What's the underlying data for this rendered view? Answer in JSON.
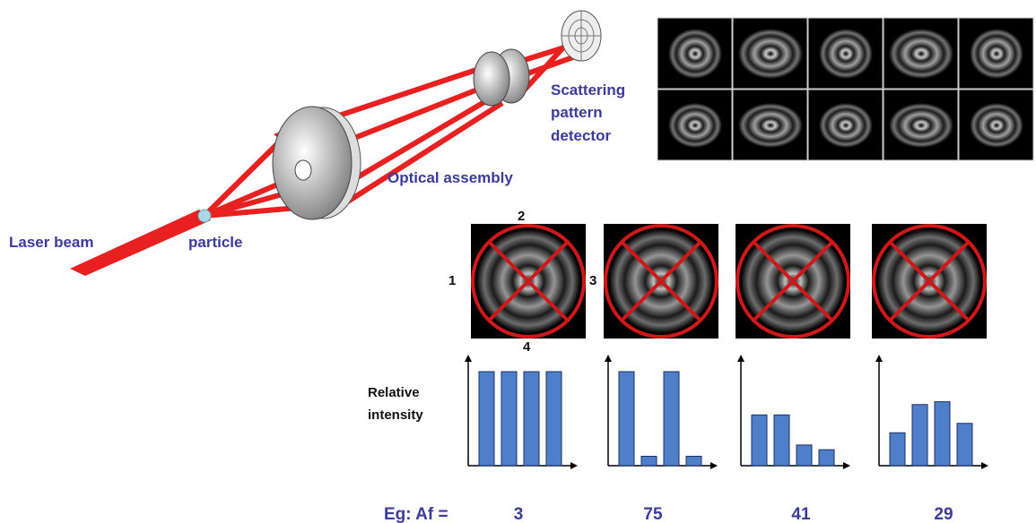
{
  "labels": {
    "laser_beam": "Laser beam",
    "particle": "particle",
    "optical_assembly": "Optical assembly",
    "detector": [
      "Scattering",
      "pattern",
      "detector"
    ],
    "quadrants": [
      "1",
      "2",
      "3",
      "4"
    ],
    "y_axis": [
      "Relative",
      "intensity"
    ],
    "example": "Eg:  Af ="
  },
  "charts": [
    {
      "type": "bar",
      "af": "3",
      "values": [
        100,
        100,
        100,
        100
      ],
      "ylim": [
        0,
        100
      ],
      "color": "#4f7fc8"
    },
    {
      "type": "bar",
      "af": "75",
      "values": [
        100,
        10,
        100,
        10
      ],
      "ylim": [
        0,
        100
      ],
      "color": "#4f7fc8"
    },
    {
      "type": "bar",
      "af": "41",
      "values": [
        54,
        54,
        22,
        17
      ],
      "ylim": [
        0,
        100
      ],
      "color": "#4f7fc8"
    },
    {
      "type": "bar",
      "af": "29",
      "values": [
        35,
        65,
        68,
        45
      ],
      "ylim": [
        0,
        100
      ],
      "color": "#4f7fc8"
    }
  ]
}
